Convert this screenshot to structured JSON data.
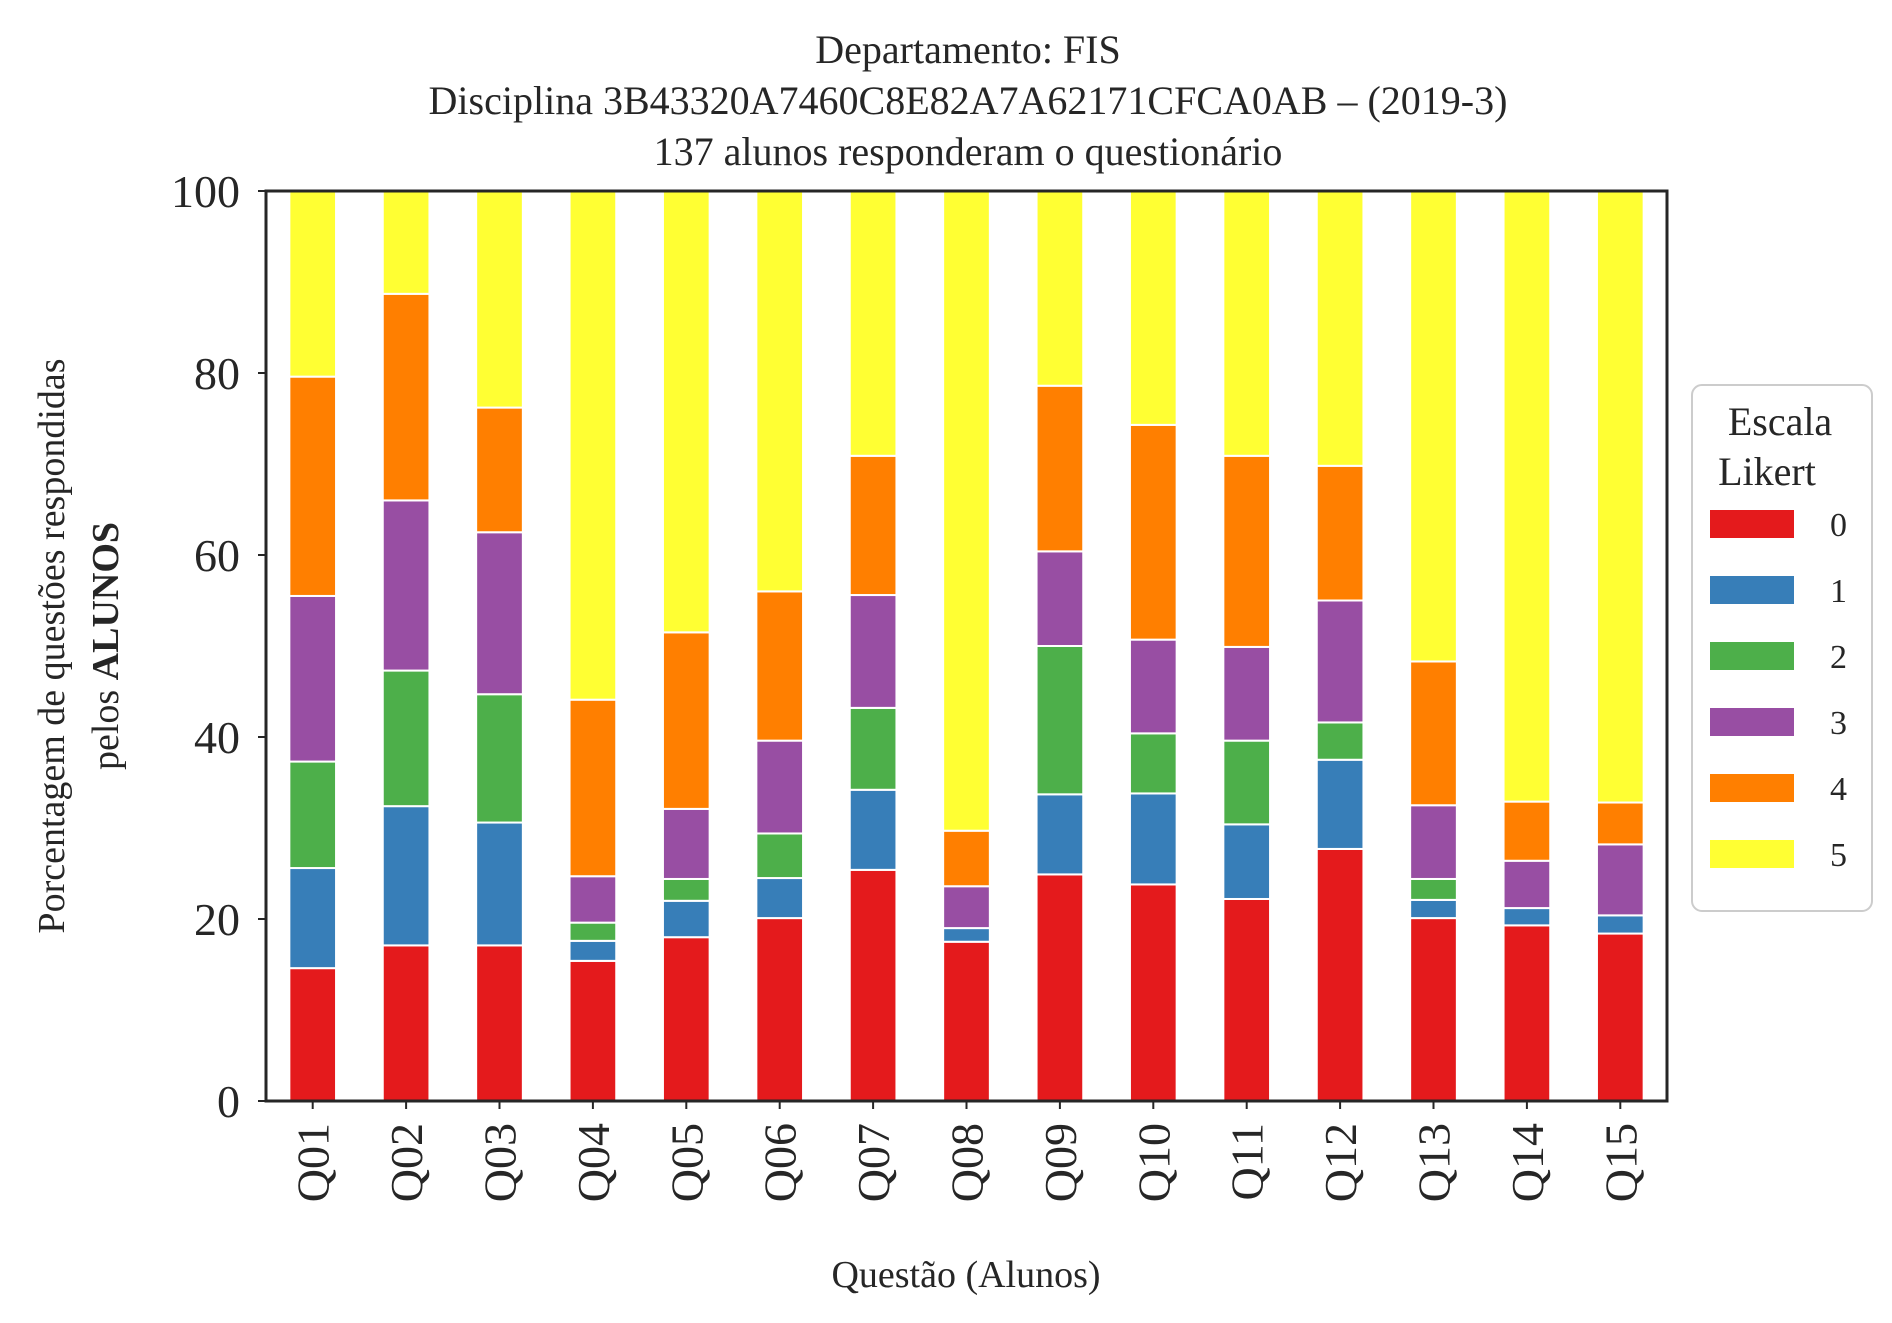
{
  "chart_data": {
    "type": "bar",
    "stacked": true,
    "title_lines": [
      "Departamento: FIS",
      "Disciplina 3B43320A7460C8E82A7A62171CFCA0AB – (2019-3)",
      "137 alunos responderam o questionário"
    ],
    "xlabel": "Questão (Alunos)",
    "ylabel_line1": "Porcentagem de questões respondidas",
    "ylabel_line2_prefix": "pelos ",
    "ylabel_line2_bold": "ALUNOS",
    "ylim": [
      0,
      100
    ],
    "yticks": [
      "0",
      "20",
      "40",
      "60",
      "80",
      "100"
    ],
    "grid": false,
    "categories": [
      "Q01",
      "Q02",
      "Q03",
      "Q04",
      "Q05",
      "Q06",
      "Q07",
      "Q08",
      "Q09",
      "Q10",
      "Q11",
      "Q12",
      "Q13",
      "Q14",
      "Q15"
    ],
    "legend": {
      "title_lines": [
        "Escala",
        "Likert"
      ],
      "placement": "right-outside-center"
    },
    "series": [
      {
        "name": "0",
        "color": "#e41a1c",
        "values": [
          14.6,
          17.1,
          17.1,
          15.4,
          18.0,
          20.1,
          25.4,
          17.5,
          24.9,
          23.8,
          22.2,
          27.7,
          20.1,
          19.3,
          18.4
        ]
      },
      {
        "name": "1",
        "color": "#377eb8",
        "values": [
          11.0,
          15.3,
          13.5,
          2.2,
          4.0,
          4.4,
          8.8,
          1.5,
          8.8,
          10.0,
          8.2,
          9.8,
          2.0,
          1.9,
          2.0
        ]
      },
      {
        "name": "2",
        "color": "#4daf4a",
        "values": [
          11.7,
          14.9,
          14.1,
          2.0,
          2.4,
          4.9,
          9.0,
          0.0,
          16.3,
          6.6,
          9.2,
          4.1,
          2.3,
          0.0,
          0.0
        ]
      },
      {
        "name": "3",
        "color": "#984ea3",
        "values": [
          18.2,
          18.7,
          17.8,
          5.1,
          7.7,
          10.2,
          12.4,
          4.6,
          10.4,
          10.3,
          10.3,
          13.4,
          8.1,
          5.2,
          7.8
        ]
      },
      {
        "name": "4",
        "color": "#ff7f00",
        "values": [
          24.1,
          22.7,
          13.7,
          19.4,
          19.4,
          16.4,
          15.3,
          6.1,
          18.2,
          23.6,
          21.0,
          14.8,
          15.8,
          6.5,
          4.6
        ]
      },
      {
        "name": "5",
        "color": "#ffff33",
        "values": [
          20.4,
          11.3,
          23.8,
          55.9,
          48.5,
          44.0,
          29.1,
          70.3,
          21.4,
          25.7,
          29.1,
          30.2,
          51.7,
          67.1,
          67.2
        ]
      }
    ]
  }
}
